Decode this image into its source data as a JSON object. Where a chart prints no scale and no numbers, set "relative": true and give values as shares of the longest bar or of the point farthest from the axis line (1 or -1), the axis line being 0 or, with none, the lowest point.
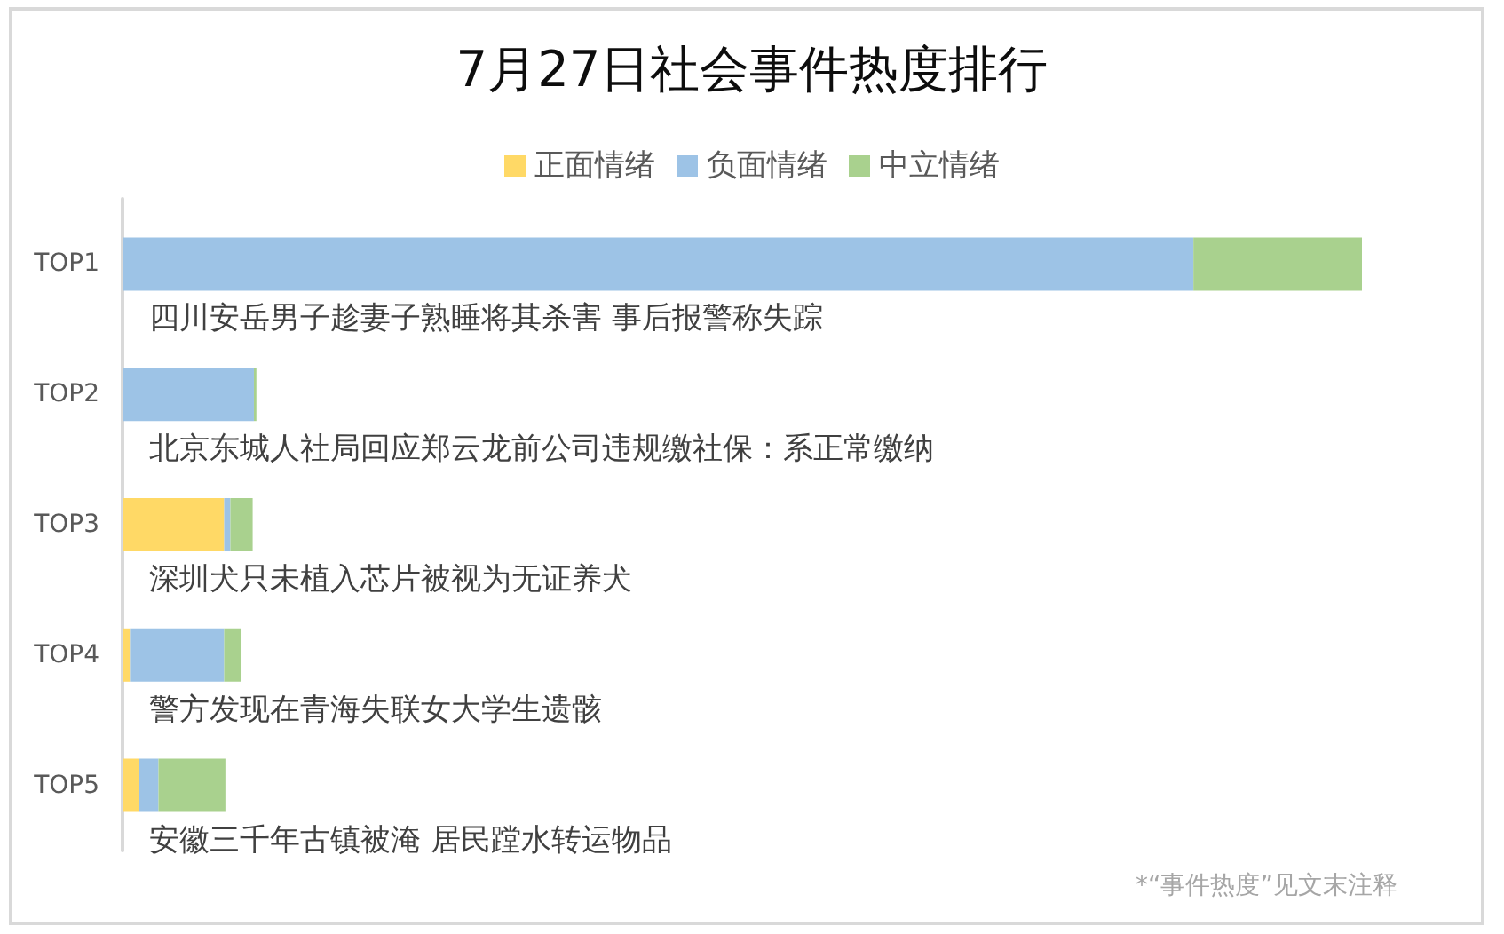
{
  "chart_data": {
    "type": "bar",
    "orientation": "horizontal",
    "stacked": true,
    "relative": true,
    "title": "7月27日社会事件热度排行",
    "categories": [
      "TOP1",
      "TOP2",
      "TOP3",
      "TOP4",
      "TOP5"
    ],
    "series": [
      {
        "name": "正面情绪",
        "color": "#ffd966",
        "values": [
          0,
          0,
          0.082,
          0.006,
          0.013
        ]
      },
      {
        "name": "负面情绪",
        "color": "#9dc3e6",
        "values": [
          0.864,
          0.106,
          0.005,
          0.076,
          0.016
        ]
      },
      {
        "name": "中立情绪",
        "color": "#a9d18e",
        "values": [
          0.136,
          0.002,
          0.018,
          0.014,
          0.054
        ]
      }
    ],
    "legend": "top",
    "tick_labels": "y",
    "annotations": [
      "四川安岳男子趁妻子熟睡将其杀害 事后报警称失踪",
      "北京东城人社局回应郑云龙前公司违规缴社保：系正常缴纳",
      "深圳犬只未植入芯片被视为无证养犬",
      "警方发现在青海失联女大学生遗骸",
      "安徽三千年古镇被淹 居民蹚水转运物品",
      "*“事件热度”见文末注释"
    ]
  }
}
